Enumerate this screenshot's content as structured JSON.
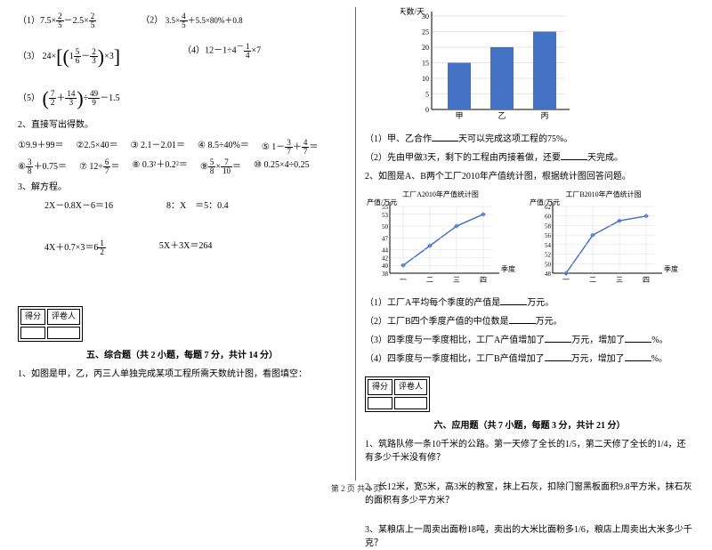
{
  "left": {
    "q1_1": "（1）7.5×",
    "q1_1b": "－2.5×",
    "q1_2": "（2）",
    "q1_2a": "3.5×",
    "q1_2b": "＋5.5×80%＋0.8",
    "q1_3": "（3）",
    "q1_3a": "24×",
    "q1_4": "（4）12－1÷4",
    "q1_4b": "×7",
    "q1_5": "（5）",
    "q1_5b": "－1.5",
    "f25n": "2",
    "f25d": "5",
    "f45n": "4",
    "f45d": "5",
    "f156n": "5",
    "f156d": "6",
    "f23n": "2",
    "f23d": "3",
    "f14n": "1",
    "f14d": "4",
    "f72n": "7",
    "f72d": "2",
    "f143n": "14",
    "f143d": "3",
    "f499n": "49",
    "f499d": "9",
    "q2_title": "2、直接写出得数。",
    "q2_1": "①9.9＋99＝",
    "q2_2": "②2.5×40＝",
    "q2_3": "③ 2.1－2.01＝",
    "q2_4": "④ 8.5÷40%＝",
    "q2_5": "⑤ 1－",
    "q2_5b": "＝",
    "q2_6": "⑥",
    "q2_6b": "＋0.75＝",
    "q2_7": "⑦ 12÷",
    "q2_7b": "＝",
    "q2_8": "⑧ 0.3²＋0.2²＝",
    "q2_9": "⑨",
    "q2_9b": "＝",
    "q2_10": "⑩ 0.25×4÷0.25",
    "f37n": "3",
    "f37d": "7",
    "f47n": "4",
    "f47d": "7",
    "f38n": "3",
    "f38d": "8",
    "f67n": "6",
    "f67d": "7",
    "f58n": "5",
    "f58d": "8",
    "f710n": "7",
    "f710d": "10",
    "q3_title": "3、解方程。",
    "q3_1": "2X－0.8X－6＝16",
    "q3_2": "8：X　＝5：0.4",
    "q3_3": "4X＋0.7×3＝6",
    "q3_3f": "1",
    "q3_3fd": "2",
    "q3_4": "5X＋3X＝264",
    "score_l": "得分",
    "score_r": "评卷人",
    "sec5_title": "五、综合题（共 2 小题，每题 7 分，共计 14 分）",
    "sec5_1": "1、如图是甲，乙，丙三人单独完成某项工程所需天数统计图，看图填空："
  },
  "right": {
    "chart1_ylabel": "天数/天",
    "chart1_yticks": [
      "30",
      "25",
      "20",
      "15",
      "10",
      "5",
      "0"
    ],
    "chart1_xlabels": [
      "甲",
      "乙",
      "丙"
    ],
    "chart1_values": [
      15,
      20,
      25
    ],
    "chart1_bar_color": "#4472c4",
    "r1": "（1）甲、乙合作",
    "r1b": "天可以完成这项工程的75%。",
    "r2": "（2）先由甲做3天，剩下的工程由丙接着做，还要",
    "r2b": "天完成。",
    "r3": "2、如图是A、B两个工厂2010年产值统计图，根据统计图回答问题。",
    "chartA_title": "工厂A2010年产值统计图",
    "chartB_title": "工厂B2010年产值统计图",
    "chartA_ylabel": "产值/万元",
    "chartB_ylabel": "产值/万元",
    "chartA_yticks": [
      "55",
      "53",
      "50",
      "47",
      "44",
      "42",
      "40",
      "38"
    ],
    "chartB_yticks": [
      "62",
      "60",
      "58",
      "56",
      "54",
      "52",
      "50",
      "48"
    ],
    "chartA_xlabel": "季度",
    "chartB_xlabel": "季度",
    "chart_xticks": [
      "一",
      "二",
      "三",
      "四"
    ],
    "chartA_values": [
      40,
      45,
      50,
      53
    ],
    "chartB_values": [
      48,
      56,
      59,
      60
    ],
    "line_color": "#4472c4",
    "rq1": "（1）工厂A平均每个季度的产值是",
    "rq1b": "万元。",
    "rq2": "（2）工厂B四个季度产值的中位数是",
    "rq2b": "万元。",
    "rq3": "（3）四季度与一季度相比，工厂A产值增加了",
    "rq3b": "万元，增加了",
    "rq3c": "%。",
    "rq4": "（4）四季度与一季度相比，工厂B产值增加了",
    "rq4b": "万元，增加了",
    "rq4c": "%。",
    "score_l": "得分",
    "score_r": "评卷人",
    "sec6_title": "六、应用题（共 7 小题，每题 3 分，共计 21 分）",
    "sec6_1": "1、筑路队修一条10千米的公路。第一天修了全长的1/5，第二天修了全长的1/4，还有多少千米没有修？",
    "sec6_2": "2、长12米，宽5米，高3米的教室，抹上石灰，扣除门窗黑板面积9.8平方米，抹石灰的面积有多少平方米？",
    "sec6_3": "3、某粮店上一周卖出面粉18吨，卖出的大米比面粉多1/6，粮店上周卖出大米多少千克？"
  },
  "footer": "第 2 页 共 4 页"
}
